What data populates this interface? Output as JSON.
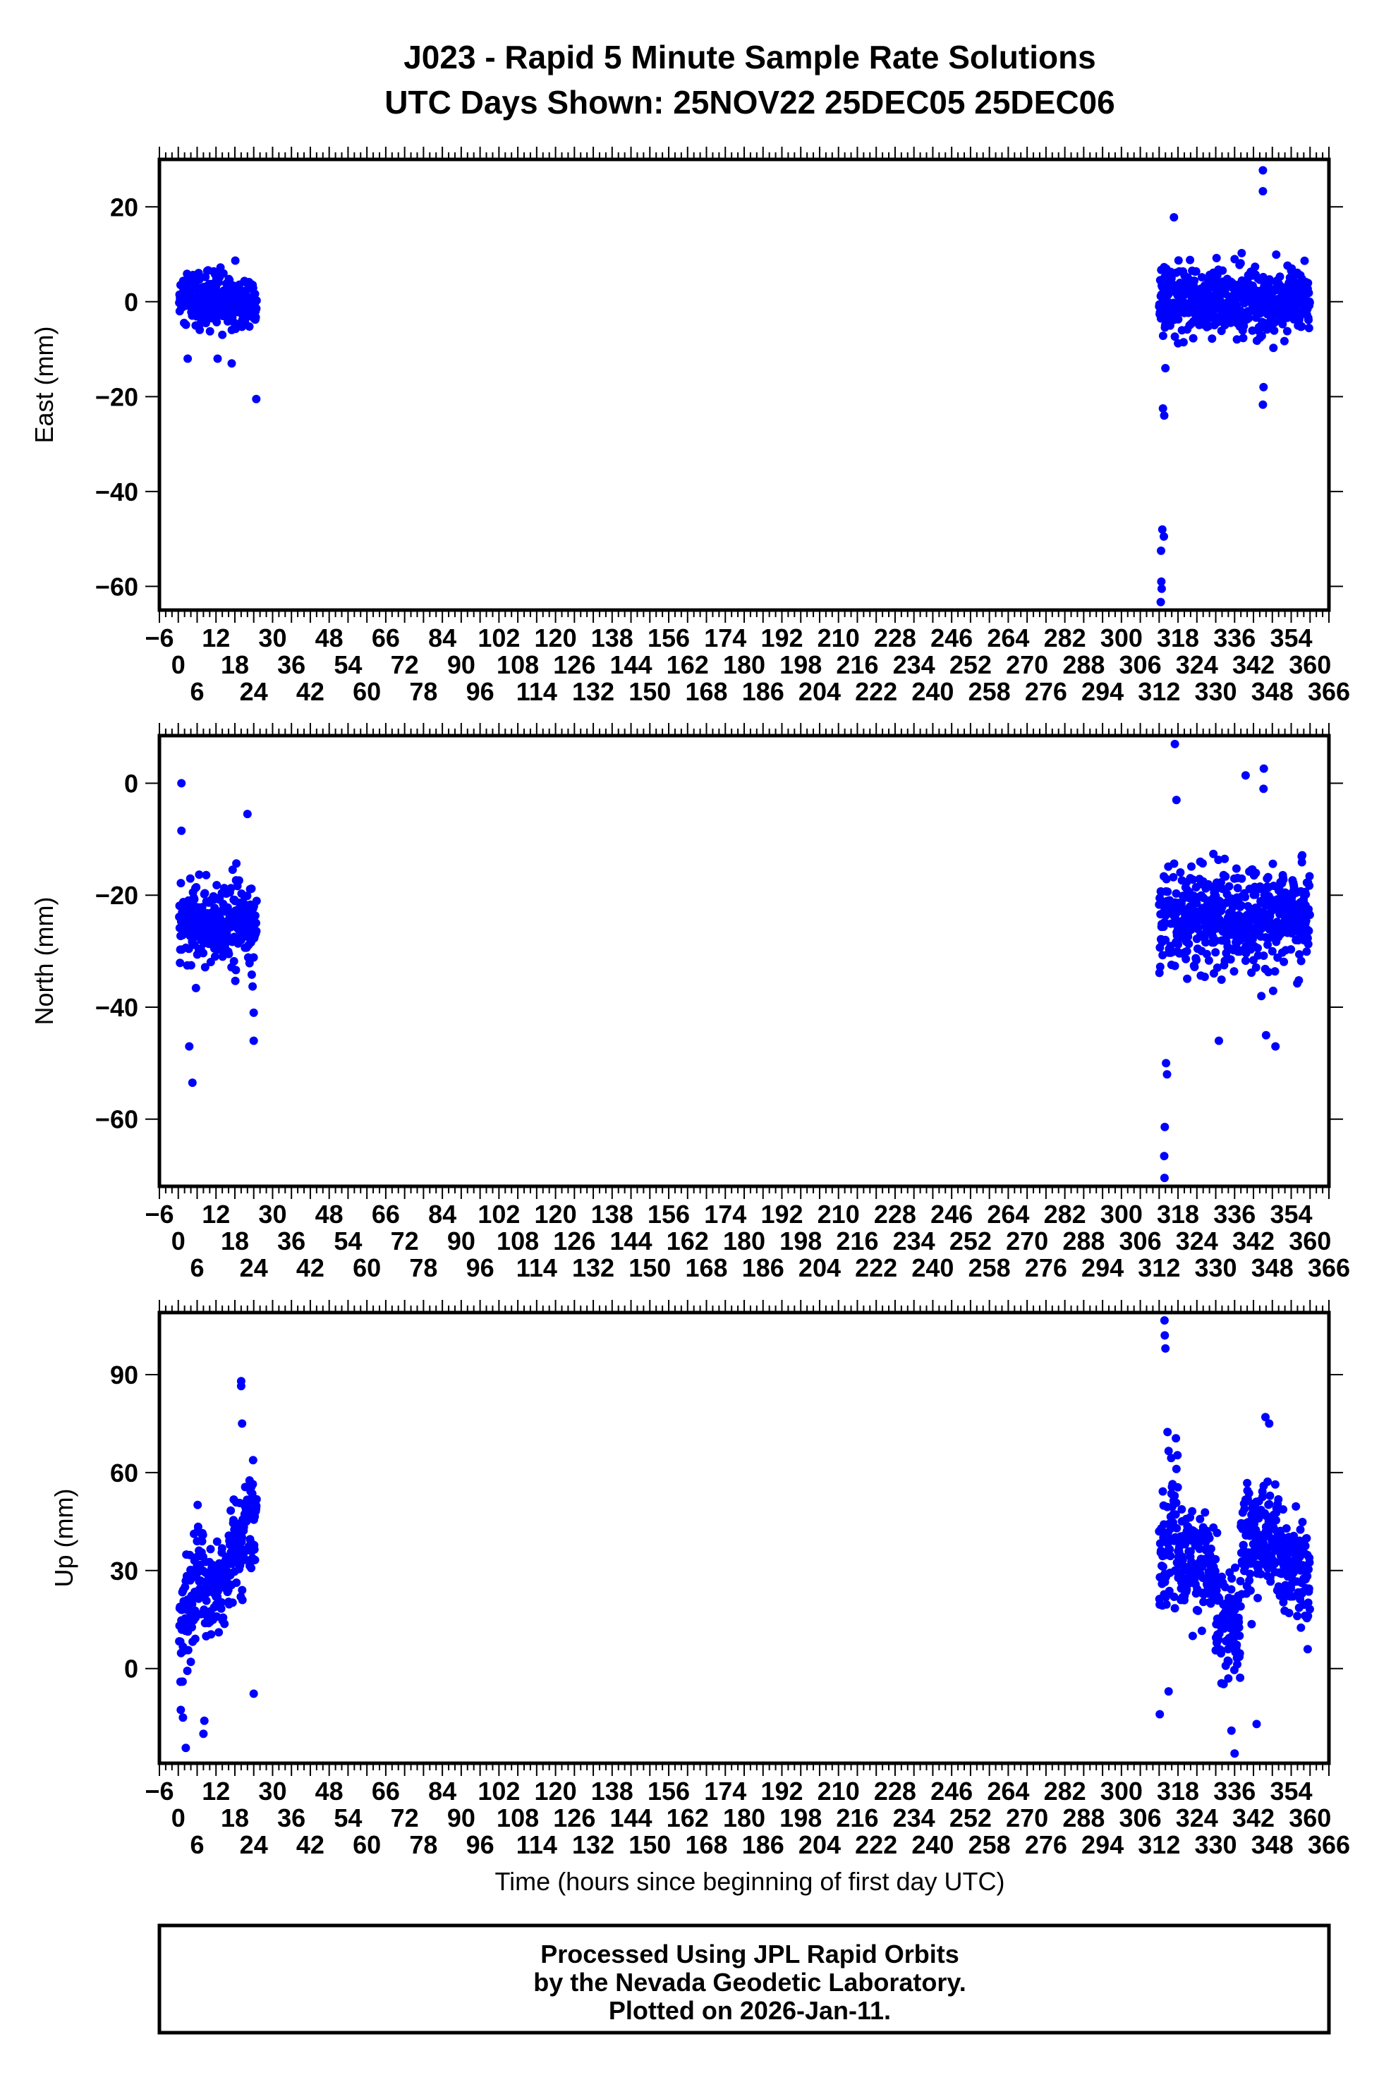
{
  "chart_data": {
    "type": "scatter",
    "title": "J023 - Rapid 5 Minute Sample Rate Solutions",
    "subtitle": "UTC Days Shown:  25NOV22 25DEC05 25DEC06",
    "xlabel": "Time (hours since beginning of first day UTC)",
    "xlim": [
      -6,
      366
    ],
    "x_tick_step": 6,
    "x_minor_step": 2,
    "point_color": "#0000ff",
    "grid": false,
    "panels": [
      {
        "name": "east",
        "ylabel": "East (mm)",
        "ylim": [
          -65,
          30
        ],
        "yticks": [
          20,
          0,
          -20,
          -40,
          -60
        ],
        "clusters": [
          {
            "x": [
              0.3,
              25
            ],
            "mean": [
              0,
              0
            ],
            "sd": 4,
            "n": 288
          },
          {
            "x": [
              312,
              360
            ],
            "mean": [
              0,
              0
            ],
            "sd": 4.5,
            "n": 576
          }
        ],
        "outliers": [
          [
            24.8,
            -20.5
          ],
          [
            3,
            -12
          ],
          [
            12.5,
            -12
          ],
          [
            17,
            -13
          ],
          [
            312.5,
            -63.3
          ],
          [
            312.7,
            -59
          ],
          [
            312.8,
            -60.5
          ],
          [
            312.6,
            -52.5
          ],
          [
            313,
            -48
          ],
          [
            313.5,
            -49.5
          ],
          [
            313.6,
            -24
          ],
          [
            313.2,
            -22.5
          ],
          [
            316.7,
            17.8
          ],
          [
            345,
            27.7
          ],
          [
            345,
            23.3
          ],
          [
            345.2,
            -18
          ],
          [
            345,
            -21.7
          ],
          [
            314,
            -14
          ]
        ]
      },
      {
        "name": "north",
        "ylabel": "North (mm)",
        "ylim": [
          -72,
          8.5
        ],
        "yticks": [
          0,
          -20,
          -40,
          -60
        ],
        "clusters": [
          {
            "x": [
              0.3,
              25
            ],
            "mean": [
              -25,
              -25
            ],
            "sd": 5,
            "n": 288
          },
          {
            "x": [
              312,
              360
            ],
            "mean": [
              -25,
              -23
            ],
            "sd": 6,
            "n": 576
          }
        ],
        "outliers": [
          [
            1,
            0
          ],
          [
            1,
            -8.5
          ],
          [
            4.5,
            -53.5
          ],
          [
            3.5,
            -47
          ],
          [
            24,
            -46
          ],
          [
            24,
            -41
          ],
          [
            22,
            -5.5
          ],
          [
            313.7,
            -70.5
          ],
          [
            313.6,
            -66.6
          ],
          [
            313.8,
            -61.4
          ],
          [
            314.5,
            -52
          ],
          [
            314.2,
            -50
          ],
          [
            317,
            7
          ],
          [
            317.5,
            -3
          ],
          [
            339.5,
            1.4
          ],
          [
            345.3,
            2.6
          ],
          [
            345.2,
            -1
          ],
          [
            349,
            -47
          ],
          [
            346,
            -45
          ],
          [
            331,
            -46
          ]
        ]
      },
      {
        "name": "up",
        "ylabel": "Up (mm)",
        "ylim": [
          -29,
          109
        ],
        "yticks": [
          90,
          60,
          30,
          0
        ],
        "clusters": [
          {
            "x": [
              0.3,
              8
            ],
            "mean": [
              12,
              30
            ],
            "sd": 12,
            "n": 92
          },
          {
            "x": [
              8,
              16
            ],
            "mean": [
              22,
              28
            ],
            "sd": 10,
            "n": 92
          },
          {
            "x": [
              16,
              25
            ],
            "mean": [
              32,
              45
            ],
            "sd": 12,
            "n": 104
          },
          {
            "x": [
              312,
              318
            ],
            "mean": [
              30,
              50
            ],
            "sd": 18,
            "n": 72
          },
          {
            "x": [
              318,
              330
            ],
            "mean": [
              33,
              30
            ],
            "sd": 10,
            "n": 144
          },
          {
            "x": [
              330,
              338
            ],
            "mean": [
              18,
              12
            ],
            "sd": 12,
            "n": 96
          },
          {
            "x": [
              338,
              350
            ],
            "mean": [
              40,
              42
            ],
            "sd": 12,
            "n": 144
          },
          {
            "x": [
              350,
              360
            ],
            "mean": [
              32,
              30
            ],
            "sd": 10,
            "n": 120
          }
        ],
        "outliers": [
          [
            2.4,
            -24.3
          ],
          [
            8,
            -20
          ],
          [
            8.3,
            -16
          ],
          [
            1.5,
            -15
          ],
          [
            20,
            88
          ],
          [
            20,
            86.5
          ],
          [
            20.3,
            75
          ],
          [
            24,
            -7.7
          ],
          [
            313.7,
            106.6
          ],
          [
            313.8,
            102
          ],
          [
            314,
            98
          ],
          [
            312.2,
            -14
          ],
          [
            315,
            -7
          ],
          [
            336,
            -26
          ],
          [
            335,
            -19
          ],
          [
            345.8,
            77
          ],
          [
            347,
            75
          ],
          [
            343,
            -17
          ]
        ]
      }
    ]
  },
  "footer": {
    "line1": "Processed Using JPL Rapid Orbits",
    "line2": "by the Nevada Geodetic Laboratory.",
    "line3": "Plotted on 2026-Jan-11."
  }
}
